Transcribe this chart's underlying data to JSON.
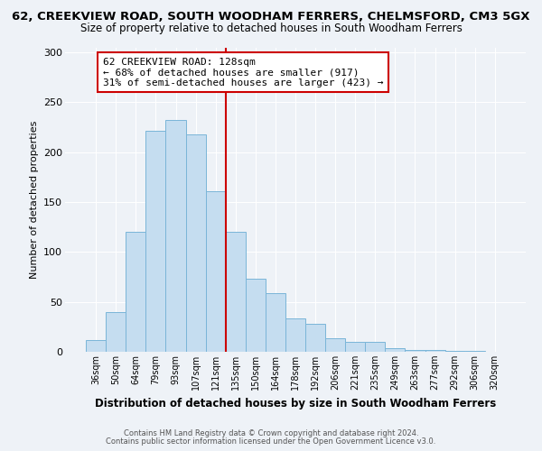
{
  "title_line1": "62, CREEKVIEW ROAD, SOUTH WOODHAM FERRERS, CHELMSFORD, CM3 5GX",
  "title_line2": "Size of property relative to detached houses in South Woodham Ferrers",
  "xlabel": "Distribution of detached houses by size in South Woodham Ferrers",
  "ylabel": "Number of detached properties",
  "categories": [
    "36sqm",
    "50sqm",
    "64sqm",
    "79sqm",
    "93sqm",
    "107sqm",
    "121sqm",
    "135sqm",
    "150sqm",
    "164sqm",
    "178sqm",
    "192sqm",
    "206sqm",
    "221sqm",
    "235sqm",
    "249sqm",
    "263sqm",
    "277sqm",
    "292sqm",
    "306sqm",
    "320sqm"
  ],
  "values": [
    12,
    40,
    120,
    221,
    232,
    218,
    161,
    120,
    73,
    59,
    33,
    28,
    14,
    10,
    10,
    4,
    2,
    2,
    1,
    1,
    0
  ],
  "bar_color": "#c5ddf0",
  "bar_edge_color": "#7ab5d8",
  "vline_x_index": 7,
  "vline_color": "#cc0000",
  "annotation_title": "62 CREEKVIEW ROAD: 128sqm",
  "annotation_line2": "← 68% of detached houses are smaller (917)",
  "annotation_line3": "31% of semi-detached houses are larger (423) →",
  "annotation_box_color": "#cc0000",
  "annotation_bg": "#ffffff",
  "ylim": [
    0,
    305
  ],
  "yticks": [
    0,
    50,
    100,
    150,
    200,
    250,
    300
  ],
  "footer_line1": "Contains HM Land Registry data © Crown copyright and database right 2024.",
  "footer_line2": "Contains public sector information licensed under the Open Government Licence v3.0.",
  "bg_color": "#eef2f7",
  "plot_bg_color": "#eef2f7",
  "grid_color": "#ffffff",
  "title1_fontsize": 9.5,
  "title2_fontsize": 8.5,
  "ylabel_fontsize": 8,
  "xlabel_fontsize": 8.5,
  "tick_fontsize": 7,
  "ytick_fontsize": 8,
  "footer_fontsize": 6,
  "ann_fontsize": 8
}
